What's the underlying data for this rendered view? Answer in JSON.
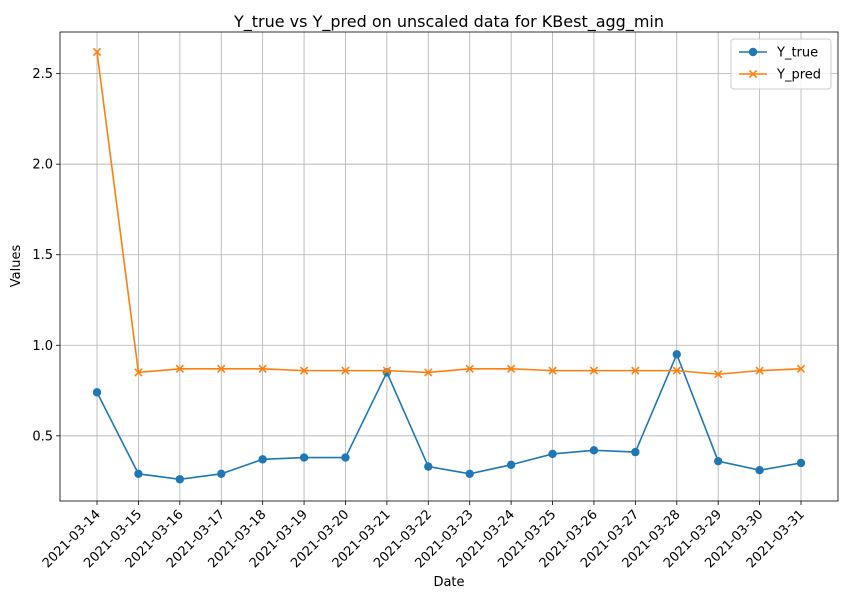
{
  "chart_data": {
    "type": "line",
    "title": "Y_true vs Y_pred on unscaled data for KBest_agg_min",
    "xlabel": "Date",
    "ylabel": "Values",
    "categories": [
      "2021-03-14",
      "2021-03-15",
      "2021-03-16",
      "2021-03-17",
      "2021-03-18",
      "2021-03-19",
      "2021-03-20",
      "2021-03-21",
      "2021-03-22",
      "2021-03-23",
      "2021-03-24",
      "2021-03-25",
      "2021-03-26",
      "2021-03-27",
      "2021-03-28",
      "2021-03-29",
      "2021-03-30",
      "2021-03-31"
    ],
    "yticks": [
      0.5,
      1.0,
      1.5,
      2.0,
      2.5
    ],
    "ytick_labels": [
      "0.5",
      "1.0",
      "1.5",
      "2.0",
      "2.5"
    ],
    "ylim": [
      0.14,
      2.73
    ],
    "grid": true,
    "legend_position": "top-right",
    "series": [
      {
        "name": "Y_true",
        "marker": "circle",
        "color": "#1f77b4",
        "values": [
          0.74,
          0.29,
          0.26,
          0.29,
          0.37,
          0.38,
          0.38,
          0.85,
          0.33,
          0.29,
          0.34,
          0.4,
          0.42,
          0.41,
          0.95,
          0.36,
          0.31,
          0.35
        ]
      },
      {
        "name": "Y_pred",
        "marker": "x",
        "color": "#ff7f0e",
        "values": [
          2.62,
          0.85,
          0.87,
          0.87,
          0.87,
          0.86,
          0.86,
          0.86,
          0.85,
          0.87,
          0.87,
          0.86,
          0.86,
          0.86,
          0.86,
          0.84,
          0.86,
          0.87
        ]
      }
    ]
  }
}
